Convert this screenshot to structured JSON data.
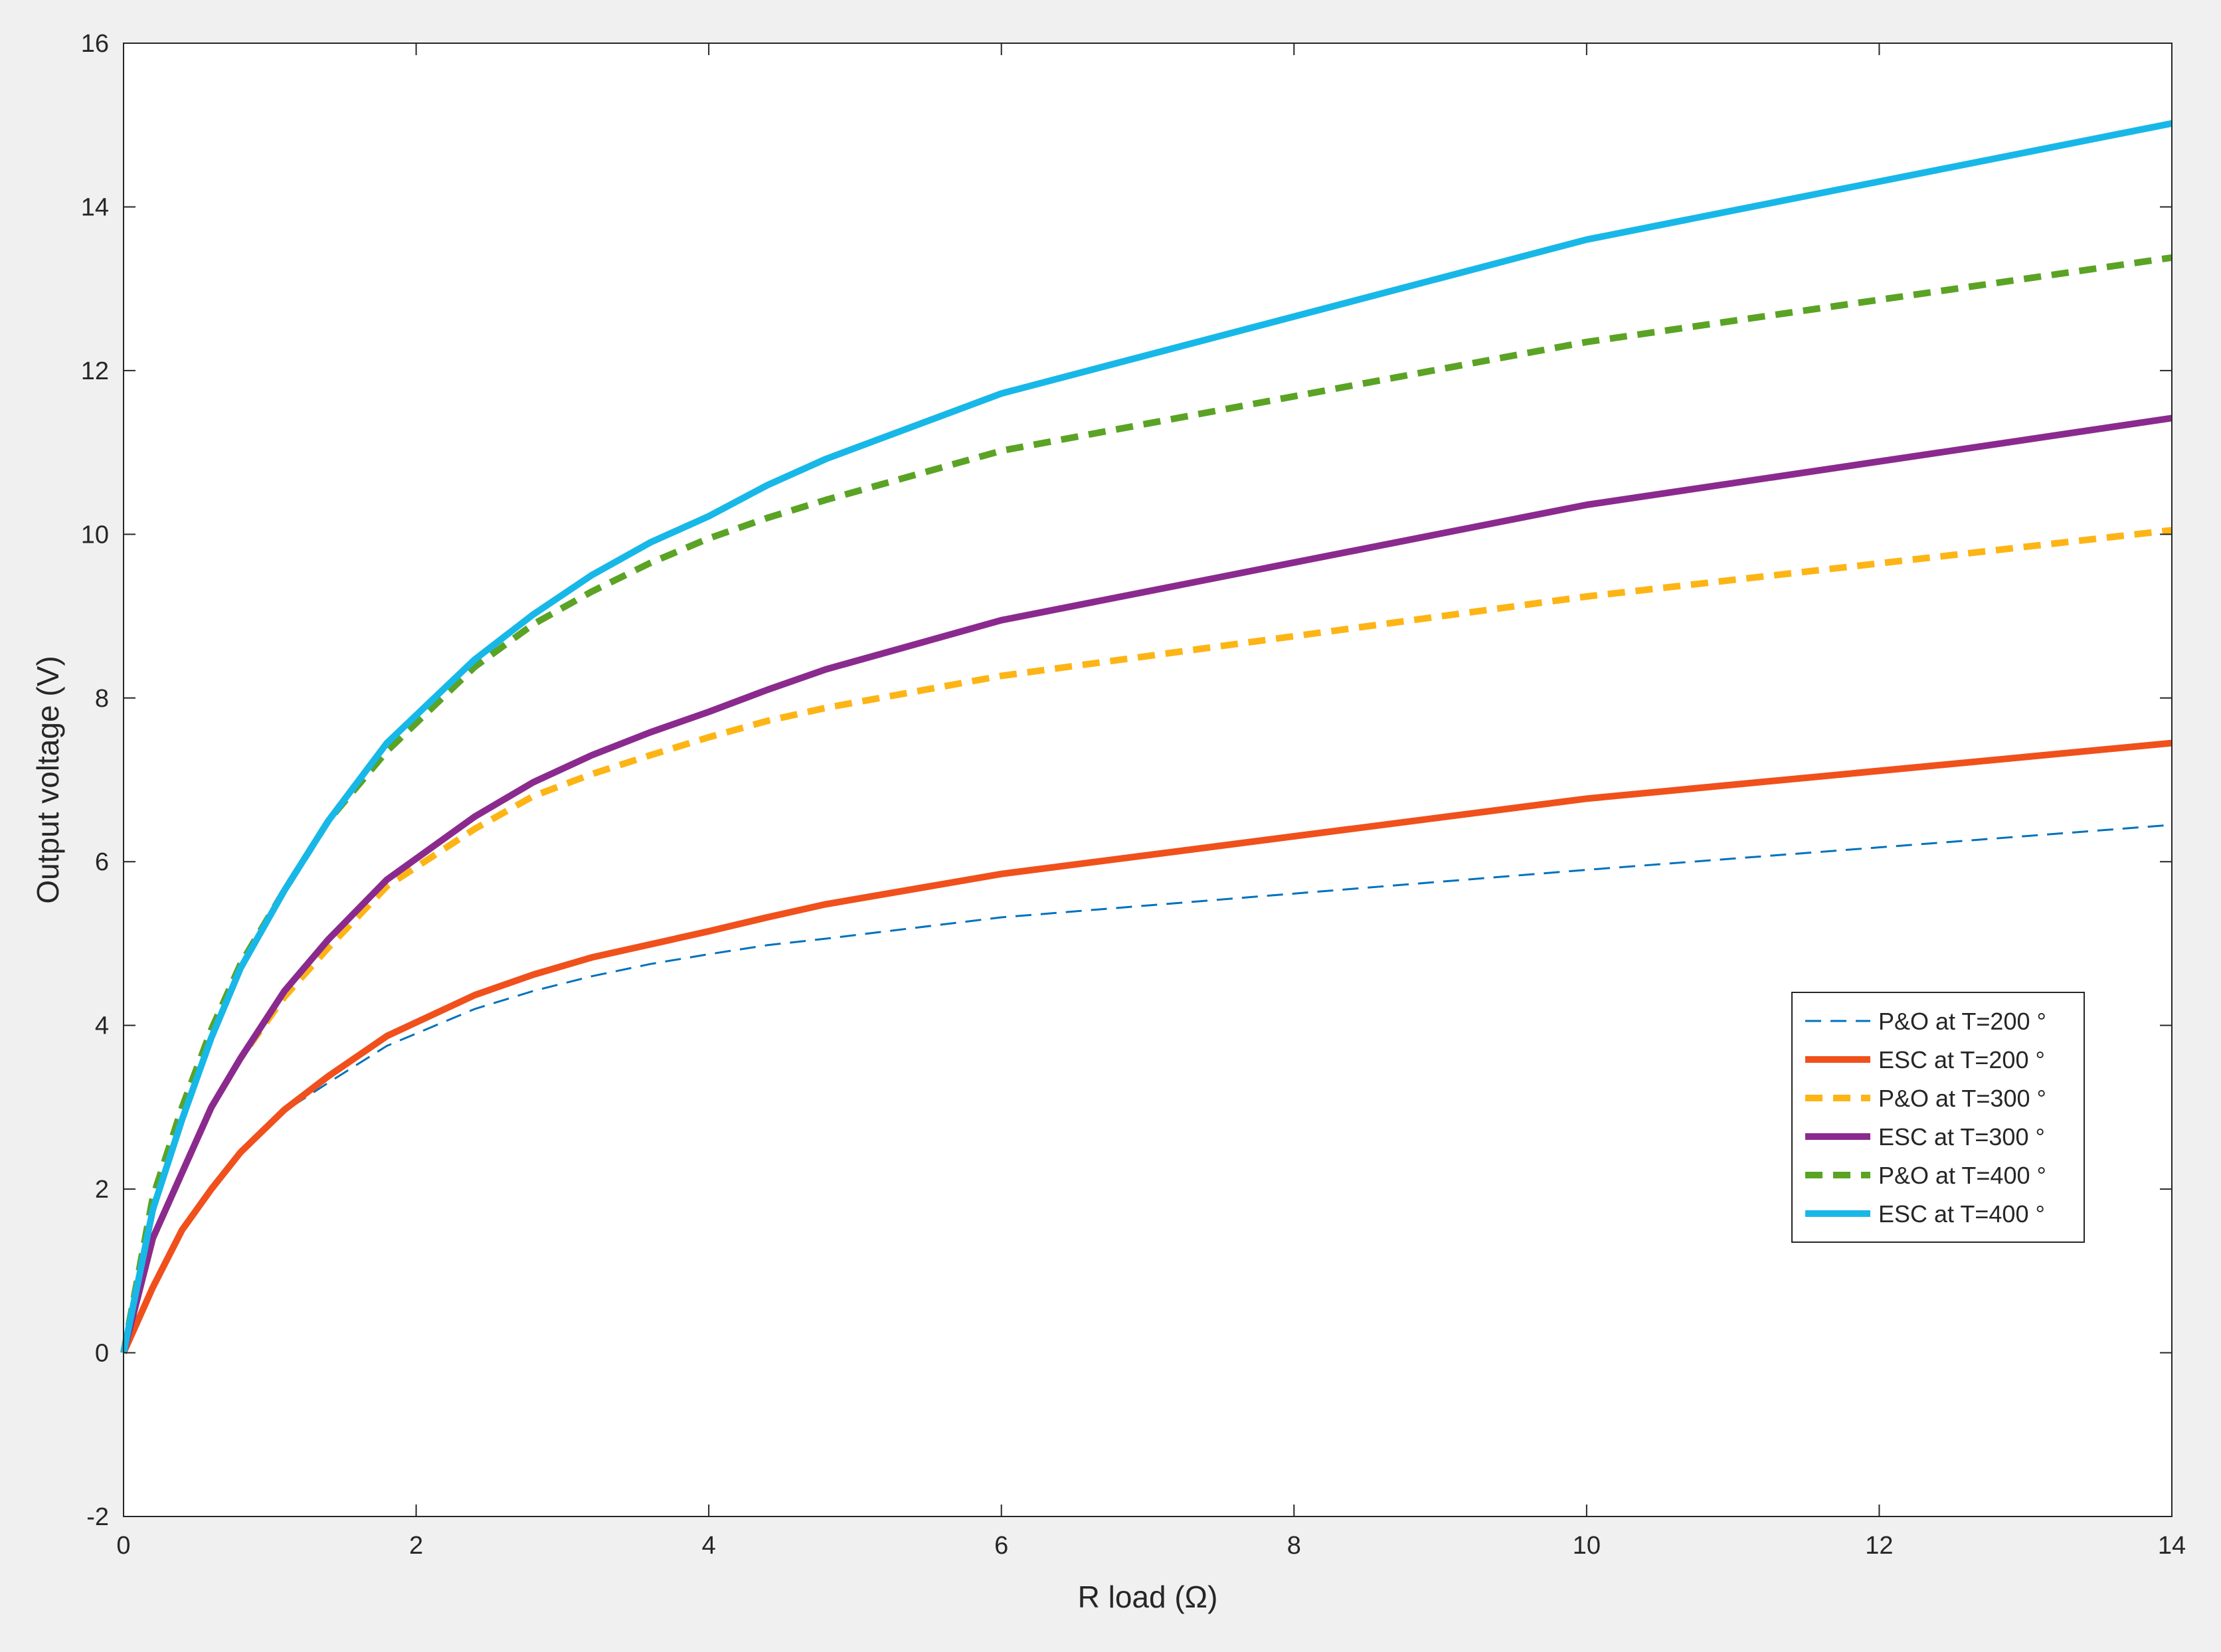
{
  "chart_data": {
    "type": "line",
    "title": "",
    "xlabel": "R load (Ω)",
    "ylabel": "Output voltage (V)",
    "xlim": [
      0,
      14
    ],
    "ylim": [
      -2,
      16
    ],
    "xticks": [
      0,
      2,
      4,
      6,
      8,
      10,
      12,
      14
    ],
    "yticks": [
      -2,
      0,
      2,
      4,
      6,
      8,
      10,
      12,
      14,
      16
    ],
    "grid": false,
    "legend_position": "lower-right",
    "series": [
      {
        "name": "P&O at T=200 °",
        "color": "#0072bd",
        "style": "thin-dashed",
        "x": [
          0,
          0.2,
          0.4,
          0.6,
          0.8,
          1.1,
          1.4,
          1.8,
          2.4,
          2.8,
          3.2,
          3.6,
          4,
          4.4,
          4.8,
          6,
          10,
          14
        ],
        "y": [
          0,
          0.8,
          1.5,
          2.0,
          2.45,
          2.95,
          3.3,
          3.75,
          4.2,
          4.42,
          4.6,
          4.75,
          4.87,
          4.98,
          5.06,
          5.32,
          5.9,
          6.45
        ]
      },
      {
        "name": "ESC at T=200 °",
        "color": "#f0501c",
        "style": "solid",
        "x": [
          0,
          0.2,
          0.4,
          0.6,
          0.8,
          1.1,
          1.4,
          1.8,
          2.4,
          2.8,
          3.2,
          3.6,
          4,
          4.4,
          4.8,
          6,
          10,
          14
        ],
        "y": [
          0,
          0.8,
          1.5,
          2.0,
          2.45,
          2.97,
          3.38,
          3.87,
          4.37,
          4.62,
          4.83,
          4.99,
          5.15,
          5.32,
          5.48,
          5.85,
          6.77,
          7.45
        ]
      },
      {
        "name": "P&O at T=300 °",
        "color": "#fdb515",
        "style": "dashed",
        "x": [
          0,
          0.2,
          0.4,
          0.6,
          0.8,
          1.1,
          1.4,
          1.8,
          2.4,
          2.8,
          3.2,
          3.6,
          4,
          4.4,
          4.8,
          6,
          10,
          14
        ],
        "y": [
          0,
          1.4,
          2.2,
          3.0,
          3.6,
          4.35,
          4.95,
          5.7,
          6.4,
          6.8,
          7.07,
          7.3,
          7.52,
          7.72,
          7.88,
          8.27,
          9.24,
          10.05
        ]
      },
      {
        "name": "ESC at T=300 °",
        "color": "#8b2a8e",
        "style": "solid",
        "x": [
          0,
          0.2,
          0.4,
          0.6,
          0.8,
          1.1,
          1.4,
          1.8,
          2.4,
          2.8,
          3.2,
          3.6,
          4,
          4.4,
          4.8,
          6,
          10,
          14
        ],
        "y": [
          0,
          1.4,
          2.2,
          3.0,
          3.6,
          4.42,
          5.05,
          5.78,
          6.55,
          6.97,
          7.3,
          7.58,
          7.83,
          8.1,
          8.35,
          8.95,
          10.36,
          11.42
        ]
      },
      {
        "name": "P&O at T=400 °",
        "color": "#5aa324",
        "style": "dashed",
        "x": [
          0,
          0.2,
          0.4,
          0.6,
          0.8,
          1.1,
          1.4,
          1.8,
          2.4,
          2.8,
          3.2,
          3.6,
          4,
          4.4,
          4.8,
          6,
          10,
          14
        ],
        "y": [
          0,
          1.9,
          3.0,
          3.95,
          4.75,
          5.65,
          6.5,
          7.35,
          8.38,
          8.9,
          9.3,
          9.65,
          9.95,
          10.2,
          10.42,
          11.02,
          12.35,
          13.38
        ]
      },
      {
        "name": "ESC at T=400 °",
        "color": "#17b8e8",
        "style": "solid",
        "x": [
          0,
          0.2,
          0.4,
          0.6,
          0.8,
          1.1,
          1.4,
          1.8,
          2.4,
          2.8,
          3.2,
          3.6,
          4,
          4.4,
          4.8,
          6,
          10,
          14
        ],
        "y": [
          0,
          1.75,
          2.85,
          3.85,
          4.7,
          5.65,
          6.5,
          7.45,
          8.47,
          9.02,
          9.5,
          9.9,
          10.22,
          10.6,
          10.92,
          11.72,
          13.6,
          15.02
        ]
      }
    ]
  }
}
